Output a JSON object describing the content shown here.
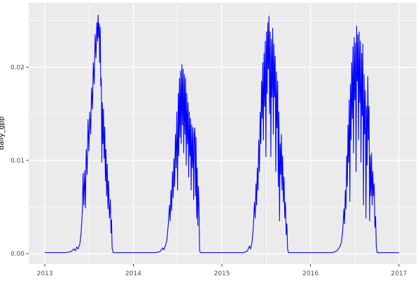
{
  "figure": {
    "background": "#FFFFFF"
  },
  "panel": {
    "background": "#EBEBEB",
    "grid_major_color": "#FFFFFF",
    "grid_minor_color": "#FFFFFF",
    "tick_color": "#333333",
    "tick_label_color": "#4D4D4D"
  },
  "chart_data": {
    "type": "line",
    "title": "",
    "xlabel": "",
    "ylabel": "daily_gpp",
    "line_color": "#0000FF",
    "legend": "none",
    "grid": "on",
    "x_unit": "decimal_year",
    "x_range": [
      2012.818,
      2017.198
    ],
    "y_range": [
      -0.00113,
      0.02692
    ],
    "x_ticks": [
      {
        "value": 2013,
        "label": "2013"
      },
      {
        "value": 2014,
        "label": "2014"
      },
      {
        "value": 2015,
        "label": "2015"
      },
      {
        "value": 2016,
        "label": "2016"
      },
      {
        "value": 2017,
        "label": "2017"
      }
    ],
    "x_minor": [
      2013.5,
      2014.5,
      2015.5,
      2016.5
    ],
    "y_ticks": [
      {
        "value": 0.0,
        "label": "0.00"
      },
      {
        "value": 0.01,
        "label": "0.01"
      },
      {
        "value": 0.02,
        "label": "0.02"
      }
    ],
    "y_minor": [
      0.005,
      0.015,
      0.025
    ],
    "series": [
      {
        "name": "daily_gpp",
        "points": [
          [
            2013.0,
            0.0001
          ],
          [
            2013.08,
            0.0001
          ],
          [
            2013.16,
            0.0001
          ],
          [
            2013.24,
            0.0001
          ],
          [
            2013.295,
            0.0002
          ],
          [
            2013.33,
            0.0005
          ],
          [
            2013.345,
            0.0003
          ],
          [
            2013.36,
            0.0007
          ],
          [
            2013.375,
            0.0005
          ],
          [
            2013.395,
            0.001
          ],
          [
            2013.41,
            0.0022
          ],
          [
            2013.425,
            0.0048
          ],
          [
            2013.432,
            0.0086
          ],
          [
            2013.44,
            0.0052
          ],
          [
            2013.45,
            0.0089
          ],
          [
            2013.458,
            0.0049
          ],
          [
            2013.468,
            0.0112
          ],
          [
            2013.478,
            0.0085
          ],
          [
            2013.488,
            0.0144
          ],
          [
            2013.498,
            0.011
          ],
          [
            2013.508,
            0.0152
          ],
          [
            2013.518,
            0.0128
          ],
          [
            2013.528,
            0.0178
          ],
          [
            2013.538,
            0.0155
          ],
          [
            2013.548,
            0.0205
          ],
          [
            2013.558,
            0.0182
          ],
          [
            2013.568,
            0.0235
          ],
          [
            2013.578,
            0.021
          ],
          [
            2013.588,
            0.0248
          ],
          [
            2013.595,
            0.0228
          ],
          [
            2013.602,
            0.0256
          ],
          [
            2013.608,
            0.0232
          ],
          [
            2013.614,
            0.0247
          ],
          [
            2013.62,
            0.0205
          ],
          [
            2013.626,
            0.0243
          ],
          [
            2013.632,
            0.018
          ],
          [
            2013.638,
            0.0188
          ],
          [
            2013.644,
            0.0098
          ],
          [
            2013.65,
            0.0162
          ],
          [
            2013.656,
            0.0118
          ],
          [
            2013.662,
            0.0155
          ],
          [
            2013.67,
            0.0102
          ],
          [
            2013.677,
            0.0136
          ],
          [
            2013.684,
            0.0078
          ],
          [
            2013.691,
            0.0112
          ],
          [
            2013.698,
            0.0062
          ],
          [
            2013.705,
            0.0096
          ],
          [
            2013.713,
            0.0048
          ],
          [
            2013.72,
            0.0078
          ],
          [
            2013.73,
            0.0038
          ],
          [
            2013.74,
            0.0058
          ],
          [
            2013.748,
            0.0022
          ],
          [
            2013.754,
            0.0036
          ],
          [
            2013.76,
            0.0006
          ],
          [
            2013.772,
            0.0001
          ],
          [
            2013.85,
            0.0001
          ],
          [
            2013.94,
            0.0001
          ],
          [
            2014.05,
            0.0001
          ],
          [
            2014.15,
            0.0001
          ],
          [
            2014.25,
            0.0001
          ],
          [
            2014.3,
            0.0002
          ],
          [
            2014.33,
            0.0006
          ],
          [
            2014.345,
            0.0004
          ],
          [
            2014.36,
            0.0008
          ],
          [
            2014.378,
            0.0014
          ],
          [
            2014.395,
            0.0032
          ],
          [
            2014.408,
            0.0052
          ],
          [
            2014.415,
            0.0035
          ],
          [
            2014.425,
            0.0068
          ],
          [
            2014.433,
            0.0046
          ],
          [
            2014.442,
            0.0088
          ],
          [
            2014.45,
            0.006
          ],
          [
            2014.458,
            0.0102
          ],
          [
            2014.466,
            0.0072
          ],
          [
            2014.475,
            0.0128
          ],
          [
            2014.483,
            0.0092
          ],
          [
            2014.491,
            0.0152
          ],
          [
            2014.499,
            0.0068
          ],
          [
            2014.507,
            0.0172
          ],
          [
            2014.513,
            0.0105
          ],
          [
            2014.52,
            0.0188
          ],
          [
            2014.527,
            0.0125
          ],
          [
            2014.534,
            0.0196
          ],
          [
            2014.541,
            0.0118
          ],
          [
            2014.548,
            0.0203
          ],
          [
            2014.555,
            0.0138
          ],
          [
            2014.562,
            0.0198
          ],
          [
            2014.569,
            0.0108
          ],
          [
            2014.576,
            0.0192
          ],
          [
            2014.583,
            0.0128
          ],
          [
            2014.59,
            0.0188
          ],
          [
            2014.597,
            0.0095
          ],
          [
            2014.604,
            0.0172
          ],
          [
            2014.611,
            0.0118
          ],
          [
            2014.618,
            0.0162
          ],
          [
            2014.625,
            0.0082
          ],
          [
            2014.632,
            0.0152
          ],
          [
            2014.639,
            0.0105
          ],
          [
            2014.646,
            0.0145
          ],
          [
            2014.653,
            0.0068
          ],
          [
            2014.66,
            0.0138
          ],
          [
            2014.667,
            0.0092
          ],
          [
            2014.674,
            0.0135
          ],
          [
            2014.681,
            0.0058
          ],
          [
            2014.688,
            0.0128
          ],
          [
            2014.695,
            0.0135
          ],
          [
            2014.702,
            0.0062
          ],
          [
            2014.708,
            0.0125
          ],
          [
            2014.715,
            0.0038
          ],
          [
            2014.721,
            0.0092
          ],
          [
            2014.728,
            0.003
          ],
          [
            2014.735,
            0.0072
          ],
          [
            2014.742,
            0.0048
          ],
          [
            2014.748,
            0.0004
          ],
          [
            2014.756,
            0.0001
          ],
          [
            2014.85,
            0.0001
          ],
          [
            2014.95,
            0.0001
          ],
          [
            2015.05,
            0.0001
          ],
          [
            2015.15,
            0.0001
          ],
          [
            2015.25,
            0.0001
          ],
          [
            2015.29,
            0.0003
          ],
          [
            2015.31,
            0.0008
          ],
          [
            2015.325,
            0.0005
          ],
          [
            2015.34,
            0.0012
          ],
          [
            2015.355,
            0.0028
          ],
          [
            2015.368,
            0.0055
          ],
          [
            2015.376,
            0.0038
          ],
          [
            2015.385,
            0.0075
          ],
          [
            2015.392,
            0.0052
          ],
          [
            2015.4,
            0.0092
          ],
          [
            2015.408,
            0.0068
          ],
          [
            2015.416,
            0.0122
          ],
          [
            2015.424,
            0.0088
          ],
          [
            2015.432,
            0.0152
          ],
          [
            2015.44,
            0.0118
          ],
          [
            2015.448,
            0.0185
          ],
          [
            2015.455,
            0.0145
          ],
          [
            2015.462,
            0.0205
          ],
          [
            2015.469,
            0.0122
          ],
          [
            2015.476,
            0.0215
          ],
          [
            2015.483,
            0.0158
          ],
          [
            2015.49,
            0.0228
          ],
          [
            2015.497,
            0.0104
          ],
          [
            2015.504,
            0.0238
          ],
          [
            2015.511,
            0.0172
          ],
          [
            2015.518,
            0.0248
          ],
          [
            2015.525,
            0.0198
          ],
          [
            2015.532,
            0.0255
          ],
          [
            2015.539,
            0.015
          ],
          [
            2015.546,
            0.0238
          ],
          [
            2015.553,
            0.0104
          ],
          [
            2015.56,
            0.023
          ],
          [
            2015.567,
            0.0168
          ],
          [
            2015.574,
            0.0242
          ],
          [
            2015.581,
            0.0128
          ],
          [
            2015.588,
            0.0225
          ],
          [
            2015.595,
            0.0168
          ],
          [
            2015.602,
            0.0212
          ],
          [
            2015.609,
            0.0088
          ],
          [
            2015.616,
            0.0195
          ],
          [
            2015.623,
            0.0135
          ],
          [
            2015.63,
            0.0185
          ],
          [
            2015.637,
            0.0072
          ],
          [
            2015.644,
            0.0152
          ],
          [
            2015.651,
            0.0035
          ],
          [
            2015.658,
            0.0118
          ],
          [
            2015.665,
            0.0085
          ],
          [
            2015.672,
            0.0128
          ],
          [
            2015.679,
            0.0068
          ],
          [
            2015.686,
            0.0105
          ],
          [
            2015.694,
            0.0055
          ],
          [
            2015.702,
            0.0082
          ],
          [
            2015.71,
            0.0038
          ],
          [
            2015.718,
            0.0055
          ],
          [
            2015.726,
            0.002
          ],
          [
            2015.734,
            0.0032
          ],
          [
            2015.742,
            0.0005
          ],
          [
            2015.752,
            0.0001
          ],
          [
            2015.85,
            0.0001
          ],
          [
            2015.95,
            0.0001
          ],
          [
            2016.05,
            0.0001
          ],
          [
            2016.15,
            0.0001
          ],
          [
            2016.25,
            0.0001
          ],
          [
            2016.3,
            0.0003
          ],
          [
            2016.33,
            0.0007
          ],
          [
            2016.35,
            0.0012
          ],
          [
            2016.365,
            0.0025
          ],
          [
            2016.378,
            0.0048
          ],
          [
            2016.386,
            0.0032
          ],
          [
            2016.394,
            0.0068
          ],
          [
            2016.402,
            0.0048
          ],
          [
            2016.41,
            0.0105
          ],
          [
            2016.417,
            0.0072
          ],
          [
            2016.424,
            0.0138
          ],
          [
            2016.431,
            0.0098
          ],
          [
            2016.438,
            0.0165
          ],
          [
            2016.445,
            0.0056
          ],
          [
            2016.452,
            0.0182
          ],
          [
            2016.459,
            0.0122
          ],
          [
            2016.466,
            0.0205
          ],
          [
            2016.473,
            0.0145
          ],
          [
            2016.48,
            0.0222
          ],
          [
            2016.487,
            0.0108
          ],
          [
            2016.494,
            0.0232
          ],
          [
            2016.501,
            0.0165
          ],
          [
            2016.508,
            0.0226
          ],
          [
            2016.515,
            0.0088
          ],
          [
            2016.522,
            0.0244
          ],
          [
            2016.529,
            0.0185
          ],
          [
            2016.536,
            0.0235
          ],
          [
            2016.543,
            0.0122
          ],
          [
            2016.55,
            0.0238
          ],
          [
            2016.557,
            0.0162
          ],
          [
            2016.564,
            0.0228
          ],
          [
            2016.571,
            0.0098
          ],
          [
            2016.578,
            0.0215
          ],
          [
            2016.585,
            0.0148
          ],
          [
            2016.592,
            0.0225
          ],
          [
            2016.599,
            0.0052
          ],
          [
            2016.606,
            0.0192
          ],
          [
            2016.613,
            0.0128
          ],
          [
            2016.62,
            0.0175
          ],
          [
            2016.627,
            0.0038
          ],
          [
            2016.634,
            0.0158
          ],
          [
            2016.641,
            0.0095
          ],
          [
            2016.648,
            0.019
          ],
          [
            2016.655,
            0.0122
          ],
          [
            2016.662,
            0.0158
          ],
          [
            2016.669,
            0.0035
          ],
          [
            2016.676,
            0.0105
          ],
          [
            2016.683,
            0.0062
          ],
          [
            2016.69,
            0.0108
          ],
          [
            2016.697,
            0.0052
          ],
          [
            2016.704,
            0.0088
          ],
          [
            2016.712,
            0.0062
          ],
          [
            2016.72,
            0.0075
          ],
          [
            2016.728,
            0.0028
          ],
          [
            2016.736,
            0.004
          ],
          [
            2016.744,
            0.0007
          ],
          [
            2016.754,
            0.0001
          ],
          [
            2016.85,
            0.0001
          ],
          [
            2016.95,
            0.0001
          ],
          [
            2017.0,
            0.0001
          ]
        ]
      }
    ]
  }
}
